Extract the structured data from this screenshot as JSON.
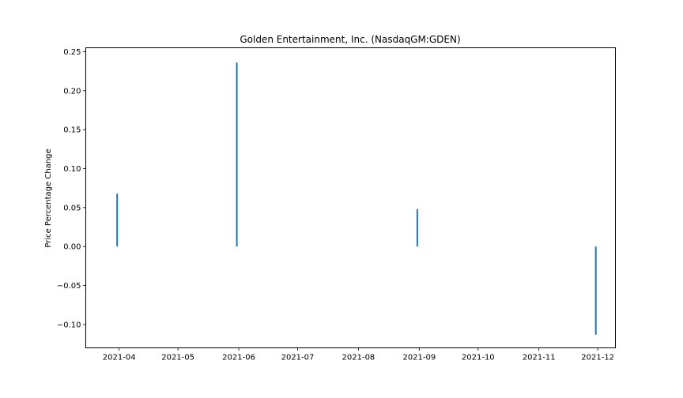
{
  "chart_data": {
    "type": "bar",
    "title": "Golden Entertainment, Inc. (NasdaqGM:GDEN)",
    "xlabel": "",
    "ylabel": "Price Percentage Change",
    "x_ticks": [
      "2021-04",
      "2021-05",
      "2021-06",
      "2021-07",
      "2021-08",
      "2021-09",
      "2021-10",
      "2021-11",
      "2021-12"
    ],
    "y_ticks": [
      -0.1,
      -0.05,
      0.0,
      0.05,
      0.1,
      0.15,
      0.2,
      0.25
    ],
    "y_tick_labels": [
      "−0.10",
      "−0.05",
      "0.00",
      "0.05",
      "0.10",
      "0.15",
      "0.20",
      "0.25"
    ],
    "xlim": [
      "2021-03-15",
      "2021-12-10"
    ],
    "ylim": [
      -0.13,
      0.255
    ],
    "grid": false,
    "color": "#1f77b4",
    "points": [
      {
        "x": "2021-03-31",
        "y": 0.068
      },
      {
        "x": "2021-05-31",
        "y": 0.236
      },
      {
        "x": "2021-08-31",
        "y": 0.048
      },
      {
        "x": "2021-11-30",
        "y": -0.113
      }
    ]
  }
}
